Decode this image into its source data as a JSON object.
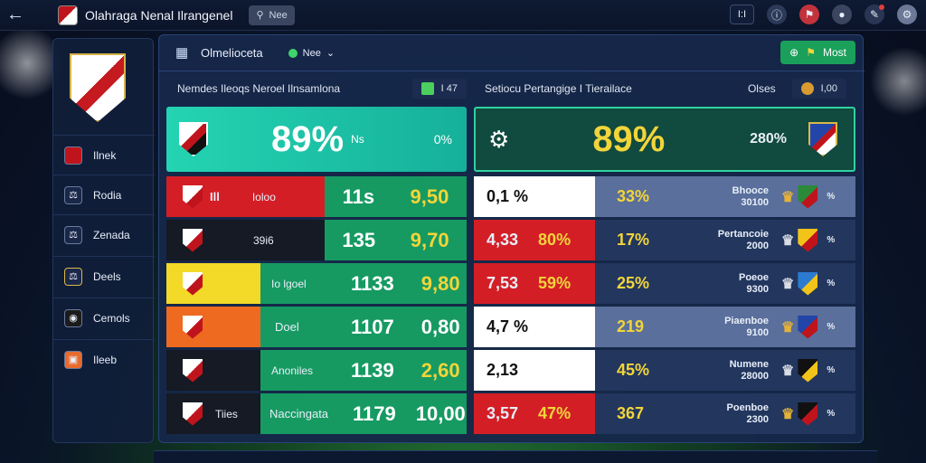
{
  "topbar": {
    "title": "Olahraga Nenal Ilrangenel",
    "search_label": "Nee",
    "badge": "I:I"
  },
  "sidebar": {
    "items": [
      {
        "label": "Ilnek"
      },
      {
        "label": "Rodia"
      },
      {
        "label": "Zenada"
      },
      {
        "label": "Deels"
      },
      {
        "label": "Cemols"
      },
      {
        "label": "Ileeb"
      }
    ]
  },
  "main": {
    "title": "Olmelioceta",
    "filter_label": "Nee",
    "most_button": "Most"
  },
  "left_panel": {
    "header": "Nemdes Ileoqs Neroel Ilnsamlona",
    "badge": "I 47",
    "hero": {
      "pct": "89%",
      "sub": "Ns",
      "right": "0%"
    },
    "rows": [
      {
        "badge": "Ill",
        "name": "Ioloo",
        "n1": "11s",
        "n2": "9,50"
      },
      {
        "badge": "",
        "name": "39i6",
        "n1": "135",
        "n2": "9,70"
      },
      {
        "badge": "",
        "name": "Io lgoel",
        "n1": "1133",
        "n2": "9,80"
      },
      {
        "badge": "",
        "name": "Doel",
        "n1": "1107",
        "n2": "0,80"
      },
      {
        "badge": "",
        "name": "Anoniles",
        "n1": "1139",
        "n2": "2,60"
      },
      {
        "badge": "Tiies",
        "name": "Naccingata",
        "n1": "1179",
        "n2": "10,00"
      }
    ]
  },
  "right_panel": {
    "header": "Setiocu Pertangige I Tierailace",
    "sub": "Olses",
    "badge": "I,00",
    "hero": {
      "pct": "89%",
      "right": "280%"
    },
    "rows": [
      {
        "a": "0,1 %",
        "b": "",
        "c": "33%",
        "name": "Bhooce",
        "val": "30100",
        "pct": "%"
      },
      {
        "a": "4,33",
        "b": "80%",
        "c": "17%",
        "name": "Pertancoie",
        "val": "2000",
        "pct": "%"
      },
      {
        "a": "7,53",
        "b": "59%",
        "c": "25%",
        "name": "Poeoe",
        "val": "9300",
        "pct": "%"
      },
      {
        "a": "4,7 %",
        "b": "",
        "c": "219",
        "name": "Piaenboe",
        "val": "9100",
        "pct": "%"
      },
      {
        "a": "2,13",
        "b": "",
        "c": "45%",
        "name": "Numene",
        "val": "28000",
        "pct": "%"
      },
      {
        "a": "3,57",
        "b": "47%",
        "c": "367",
        "name": "Poenboe",
        "val": "2300",
        "pct": "%"
      }
    ]
  }
}
